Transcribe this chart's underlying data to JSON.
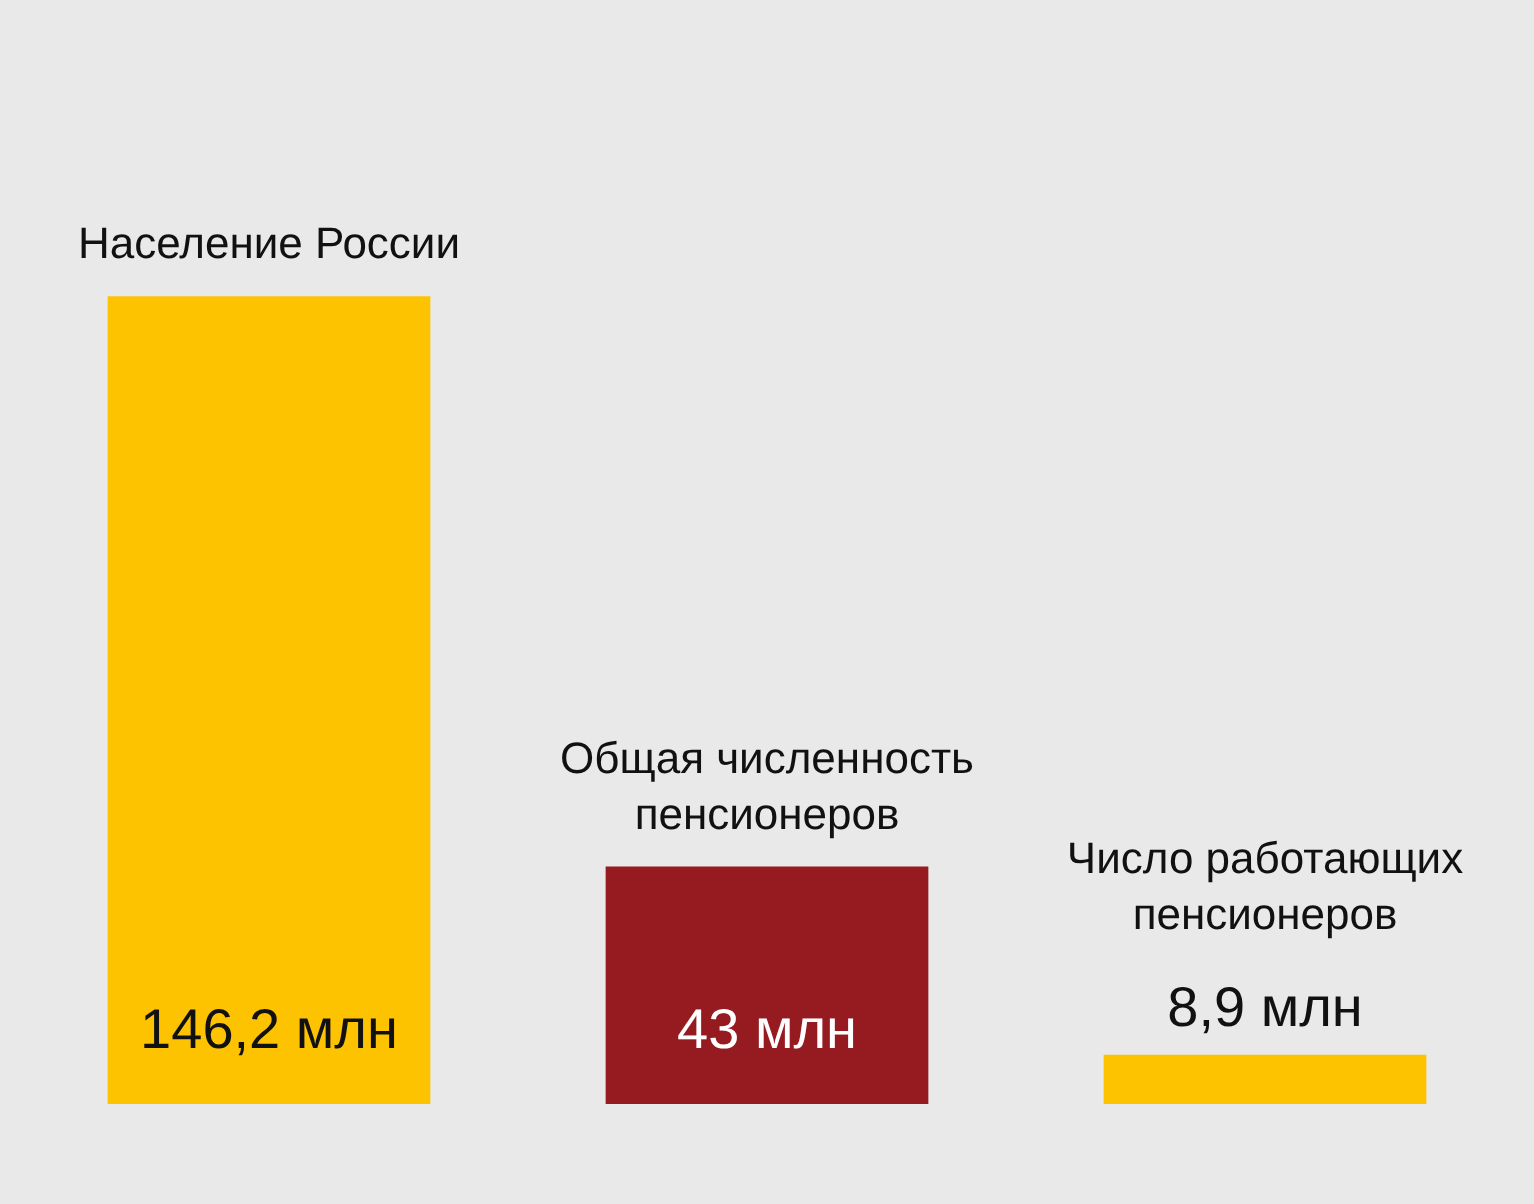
{
  "chart_data": {
    "type": "bar",
    "categories": [
      "Население России",
      "Общая численность пенсионеров",
      "Число работающих пенсионеров"
    ],
    "values": [
      146.2,
      43,
      8.9
    ],
    "colors": [
      "#fdc300",
      "#951b21",
      "#fdc300"
    ],
    "value_labels": [
      "146,2 млн",
      "43 млн",
      "8,9 млн"
    ]
  }
}
